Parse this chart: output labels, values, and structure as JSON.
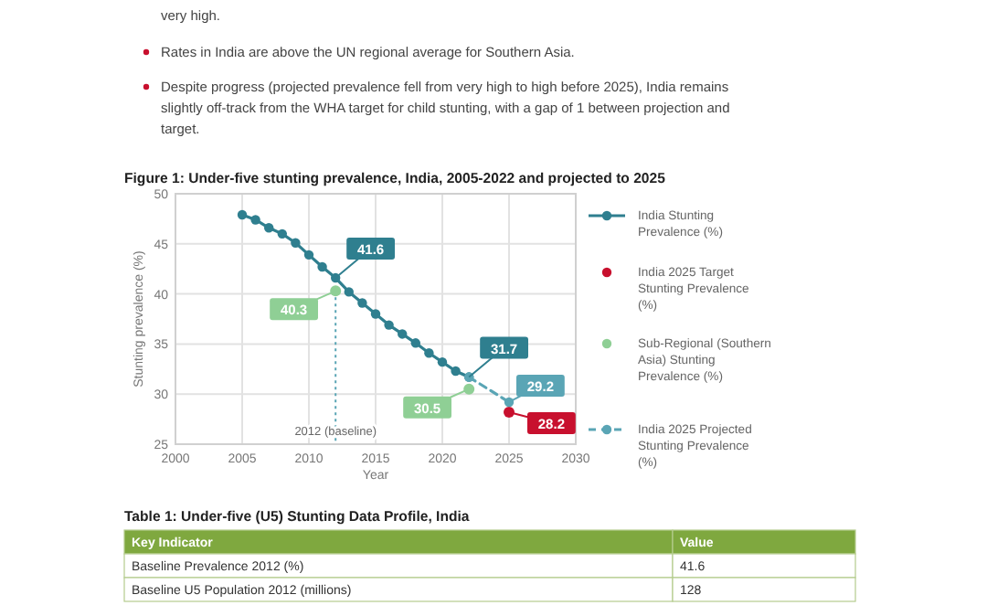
{
  "chart_data": {
    "type": "line",
    "title": "Figure 1: Under-five stunting prevalence, India, 2005-2022 and projected to 2025",
    "xlabel": "Year",
    "ylabel": "Stunting prevalence (%)",
    "xlim": [
      2000,
      2030
    ],
    "xticks": [
      2000,
      2005,
      2010,
      2015,
      2020,
      2025,
      2030
    ],
    "ylim": [
      25,
      50
    ],
    "yticks": [
      25,
      30,
      35,
      40,
      45,
      50
    ],
    "grid": true,
    "legend": "right",
    "marker": "circle",
    "series": [
      {
        "name": "India Stunting Prevalence (%)",
        "color": "#2f7f8f",
        "x": [
          2005,
          2006,
          2007,
          2008,
          2009,
          2010,
          2011,
          2012,
          2013,
          2014,
          2015,
          2016,
          2017,
          2018,
          2019,
          2020,
          2021,
          2022
        ],
        "values": [
          47.9,
          47.4,
          46.6,
          46.0,
          45.1,
          43.9,
          42.7,
          41.6,
          40.2,
          39.1,
          38.0,
          36.9,
          36.0,
          35.1,
          34.1,
          33.2,
          32.3,
          31.7
        ],
        "value_labels": [
          null,
          null,
          null,
          null,
          null,
          null,
          null,
          "41.6",
          null,
          null,
          null,
          null,
          null,
          null,
          null,
          null,
          null,
          "31.7"
        ]
      },
      {
        "name": "India 2025 Target Stunting Prevalence (%)",
        "type": "scatter",
        "color": "#c8102e",
        "x": [
          2025
        ],
        "values": [
          28.2
        ],
        "value_labels": [
          "28.2"
        ]
      },
      {
        "name": "Sub-Regional (Southern Asia) Stunting Prevalence (%)",
        "type": "scatter",
        "color": "#8fcf95",
        "x": [
          2012,
          2022
        ],
        "values": [
          40.3,
          30.5
        ],
        "value_labels": [
          "40.3",
          "30.5"
        ]
      },
      {
        "name": "India 2025 Projected Stunting Prevalence (%)",
        "type": "line",
        "line_style": "dashed",
        "color": "#5aa5b5",
        "x": [
          2022,
          2025
        ],
        "values": [
          31.7,
          29.2
        ],
        "value_labels": [
          null,
          "29.2"
        ]
      }
    ],
    "ref_lines": [
      {
        "axis": "x",
        "value": 2012,
        "label": "2012 (baseline)",
        "color": "#5aa5b5",
        "line_style": "dotted"
      }
    ],
    "annotations": [
      "very high.",
      "Rates in India are above the UN regional average for Southern Asia.",
      "Despite progress (projected prevalence fell from very high to high before 2025), India remains slightly off-track from the WHA target for child stunting, with a gap of 1 between projection and target.",
      "Table 1: Under-five (U5) Stunting Data Profile, India",
      "Key Indicator",
      "Value",
      "Baseline Prevalence 2012 (%)",
      "41.6",
      "Baseline U5 Population 2012 (millions)",
      "128"
    ]
  }
}
